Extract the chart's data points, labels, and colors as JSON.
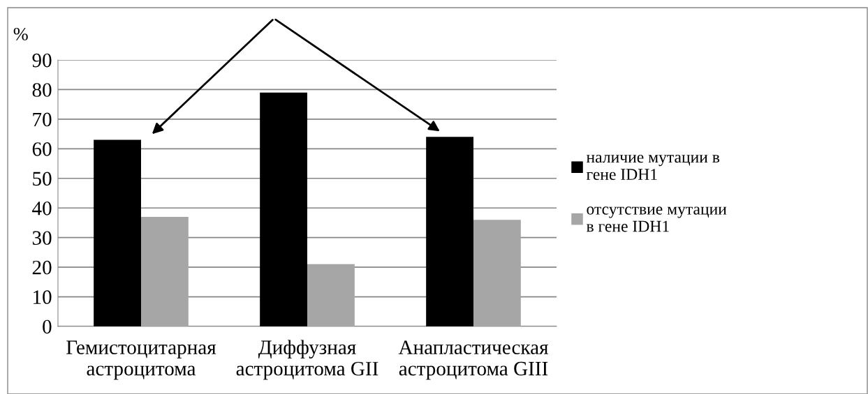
{
  "chart_data": {
    "type": "bar",
    "ylabel": "%",
    "categories": [
      "Гемистоцитарная\nастроцитома",
      "Диффузная\nастроцитома GII",
      "Анапластическая\nастроцитома GIII"
    ],
    "series": [
      {
        "name": "наличие мутации в\nгене IDH1",
        "color": "#000000",
        "values": [
          63,
          79,
          64
        ]
      },
      {
        "name": "отсутствие мутации\nв гене IDH1",
        "color": "#a6a6a6",
        "values": [
          37,
          21,
          36
        ]
      }
    ],
    "ylim": [
      0,
      90
    ],
    "yticks": [
      0,
      10,
      20,
      30,
      40,
      50,
      60,
      70,
      80,
      90
    ],
    "grid": "y",
    "legend": "right"
  }
}
